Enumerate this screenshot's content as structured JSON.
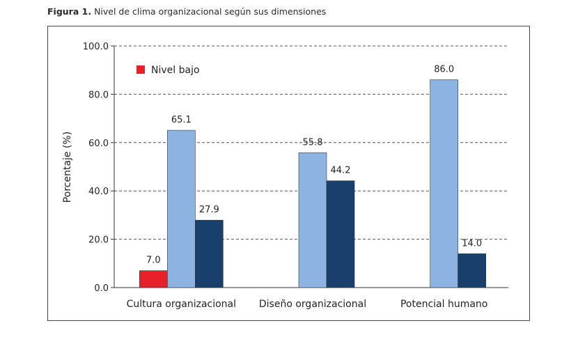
{
  "figure": {
    "label": "Figura 1.",
    "caption": "Nivel de clima organizacional según sus dimensiones"
  },
  "chart_data": {
    "type": "bar",
    "ylabel": "Porcentaje (%)",
    "xlabel": "",
    "ylim": [
      0,
      100
    ],
    "yticks": [
      "0.0",
      "20.0",
      "40.0",
      "60.0",
      "80.0",
      "100.0"
    ],
    "grid": "horizontal dashed",
    "legend_position": "top-left",
    "categories": [
      "Cultura organizacional",
      "Diseño organizacional",
      "Potencial humano"
    ],
    "series": [
      {
        "name": "Nivel bajo",
        "color": "#e8202a",
        "values": [
          7.0,
          null,
          null
        ],
        "labels": [
          "7.0",
          "",
          ""
        ]
      },
      {
        "color": "#8db3e2",
        "values": [
          65.1,
          55.8,
          86.0
        ],
        "labels": [
          "65.1",
          "55.8",
          "86.0"
        ]
      },
      {
        "color": "#17406d",
        "values": [
          27.9,
          44.2,
          14.0
        ],
        "labels": [
          "27.9",
          "44.2",
          "14.0"
        ]
      }
    ]
  }
}
